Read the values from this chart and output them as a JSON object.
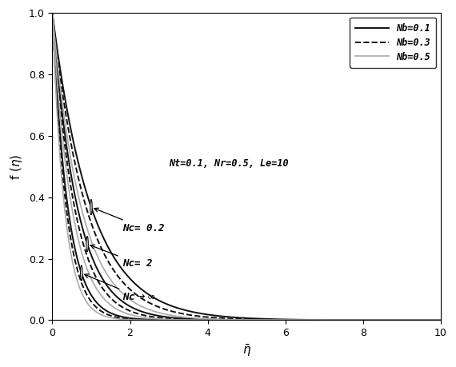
{
  "xlabel": "$\\bar{\\eta}$",
  "ylabel": "f’($\\eta$)",
  "xlim": [
    0,
    10
  ],
  "ylim": [
    0,
    1
  ],
  "xticks": [
    0,
    2,
    4,
    6,
    8,
    10
  ],
  "yticks": [
    0,
    0.2,
    0.4,
    0.6,
    0.8,
    1.0
  ],
  "annotation_text": "Nt=0.1, Nr=0.5, Le=10",
  "legend_labels": [
    "Nb=0.1",
    "Nb=0.3",
    "Nb=0.5"
  ],
  "nb_line_styles": [
    "-",
    "--",
    "-"
  ],
  "nb_line_colors": [
    "#111111",
    "#111111",
    "#aaaaaa"
  ],
  "nb_linewidths": [
    1.4,
    1.4,
    1.2
  ],
  "decay_rates_nc02": [
    1.0,
    1.15,
    1.35
  ],
  "decay_rates_nc2": [
    1.55,
    1.75,
    2.0
  ],
  "decay_rates_ncinf": [
    2.5,
    2.8,
    3.2
  ],
  "figsize": [
    5.7,
    4.59
  ],
  "dpi": 100
}
